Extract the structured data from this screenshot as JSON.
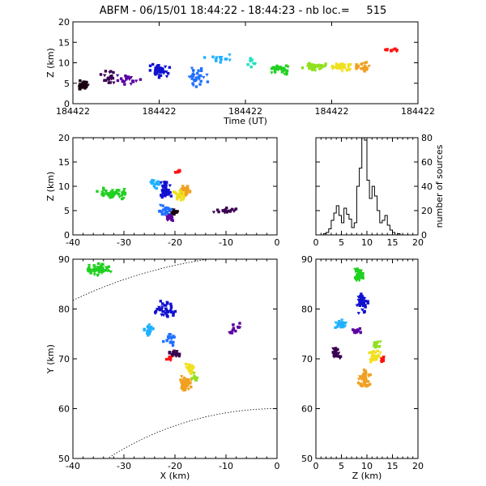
{
  "title": "ABFM - 06/15/01 18:44:22 - 18:44:23 - nb loc.=     515",
  "chart_data": [
    {
      "panel": "time-height",
      "type": "scatter",
      "xlabel": "Time (UT)",
      "ylabel": "Z (km)",
      "xlim": [
        0,
        1
      ],
      "ylim": [
        0,
        20
      ],
      "xticklabels": [
        "184422",
        "184422",
        "184422",
        "184422",
        "184422"
      ],
      "yticks": [
        0,
        5,
        10,
        15,
        20
      ],
      "clusters": [
        {
          "x": 0.03,
          "y": 4.5,
          "n": 40,
          "dx": 0.03,
          "dy": 1.5,
          "color": "#1a0010"
        },
        {
          "x": 0.1,
          "y": 6.5,
          "n": 20,
          "dx": 0.03,
          "dy": 2.0,
          "color": "#3a0050"
        },
        {
          "x": 0.16,
          "y": 6.0,
          "n": 20,
          "dx": 0.04,
          "dy": 2.0,
          "color": "#5a00a0"
        },
        {
          "x": 0.25,
          "y": 8.0,
          "n": 40,
          "dx": 0.04,
          "dy": 2.0,
          "color": "#1010d0"
        },
        {
          "x": 0.36,
          "y": 7.0,
          "n": 30,
          "dx": 0.04,
          "dy": 3.0,
          "color": "#2070ff"
        },
        {
          "x": 0.42,
          "y": 11.0,
          "n": 15,
          "dx": 0.05,
          "dy": 1.5,
          "color": "#20b0ff"
        },
        {
          "x": 0.52,
          "y": 10.0,
          "n": 10,
          "dx": 0.04,
          "dy": 2.0,
          "color": "#20e0c0"
        },
        {
          "x": 0.6,
          "y": 8.5,
          "n": 35,
          "dx": 0.04,
          "dy": 1.5,
          "color": "#20d020"
        },
        {
          "x": 0.7,
          "y": 9.0,
          "n": 40,
          "dx": 0.04,
          "dy": 1.5,
          "color": "#90e020"
        },
        {
          "x": 0.78,
          "y": 9.0,
          "n": 40,
          "dx": 0.04,
          "dy": 1.5,
          "color": "#f0e020"
        },
        {
          "x": 0.84,
          "y": 9.0,
          "n": 30,
          "dx": 0.03,
          "dy": 1.5,
          "color": "#f0a020"
        },
        {
          "x": 0.93,
          "y": 13.0,
          "n": 12,
          "dx": 0.03,
          "dy": 0.6,
          "color": "#ff1010"
        }
      ]
    },
    {
      "panel": "x-z",
      "type": "scatter",
      "xlabel": "",
      "ylabel": "Z (km)",
      "xlim": [
        -40,
        0
      ],
      "ylim": [
        0,
        20
      ],
      "xticks": [
        -40,
        -30,
        -20,
        -10,
        0
      ],
      "yticks": [
        0,
        5,
        10,
        15,
        20
      ],
      "clusters": [
        {
          "x": -32,
          "y": 8.5,
          "n": 55,
          "dx": 4,
          "dy": 1.3,
          "color": "#20d020"
        },
        {
          "x": -24,
          "y": 10.5,
          "n": 20,
          "dx": 1.5,
          "dy": 1.5,
          "color": "#20b0ff"
        },
        {
          "x": -22,
          "y": 9.0,
          "n": 45,
          "dx": 1.5,
          "dy": 2.5,
          "color": "#1010d0"
        },
        {
          "x": -22,
          "y": 5.0,
          "n": 25,
          "dx": 2.0,
          "dy": 1.5,
          "color": "#2070ff"
        },
        {
          "x": -21,
          "y": 3.5,
          "n": 20,
          "dx": 1.0,
          "dy": 1.0,
          "color": "#5a00a0"
        },
        {
          "x": -18,
          "y": 9.0,
          "n": 45,
          "dx": 1.5,
          "dy": 1.5,
          "color": "#f0a020"
        },
        {
          "x": -19,
          "y": 8.0,
          "n": 25,
          "dx": 1.5,
          "dy": 1.5,
          "color": "#f0e020"
        },
        {
          "x": -19.5,
          "y": 13.0,
          "n": 10,
          "dx": 0.7,
          "dy": 0.4,
          "color": "#ff1010"
        },
        {
          "x": -10,
          "y": 5.0,
          "n": 20,
          "dx": 3,
          "dy": 0.8,
          "color": "#3a0050"
        },
        {
          "x": -20,
          "y": 4.5,
          "n": 15,
          "dx": 1.5,
          "dy": 0.8,
          "color": "#1a0010"
        }
      ]
    },
    {
      "panel": "histogram",
      "type": "bar",
      "xlabel": "",
      "ylabel": "number of sources",
      "xlim": [
        0,
        20
      ],
      "ylim": [
        0,
        80
      ],
      "xticks": [
        0,
        5,
        10,
        15,
        20
      ],
      "yticks": [
        0,
        20,
        40,
        60,
        80
      ],
      "bin_width": 0.5,
      "bin_start": 0,
      "values": [
        0,
        0,
        0,
        1,
        2,
        5,
        12,
        18,
        24,
        16,
        10,
        22,
        17,
        13,
        6,
        10,
        40,
        55,
        82,
        78,
        45,
        30,
        40,
        32,
        20,
        10,
        12,
        16,
        8,
        4,
        2,
        0,
        1,
        0,
        0,
        0,
        0,
        0,
        0,
        0
      ]
    },
    {
      "panel": "x-y",
      "type": "scatter",
      "xlabel": "X (km)",
      "ylabel": "Y (km)",
      "xlim": [
        -40,
        0
      ],
      "ylim": [
        50,
        90
      ],
      "xticks": [
        -40,
        -30,
        -20,
        -10,
        0
      ],
      "yticks": [
        50,
        60,
        70,
        80,
        90
      ],
      "clusters": [
        {
          "x": -35,
          "y": 88,
          "n": 55,
          "dx": 3,
          "dy": 1.5,
          "color": "#20d020"
        },
        {
          "x": -22,
          "y": 80,
          "n": 45,
          "dx": 2.5,
          "dy": 2.5,
          "color": "#1010d0"
        },
        {
          "x": -25,
          "y": 76,
          "n": 25,
          "dx": 1.5,
          "dy": 1.5,
          "color": "#20b0ff"
        },
        {
          "x": -21,
          "y": 74,
          "n": 20,
          "dx": 1.5,
          "dy": 2.0,
          "color": "#2070ff"
        },
        {
          "x": -20,
          "y": 71,
          "n": 25,
          "dx": 1.5,
          "dy": 1.0,
          "color": "#3a0050"
        },
        {
          "x": -21,
          "y": 70,
          "n": 10,
          "dx": 1.0,
          "dy": 0.7,
          "color": "#ff1010"
        },
        {
          "x": -18,
          "y": 65,
          "n": 60,
          "dx": 1.5,
          "dy": 2.0,
          "color": "#f0a020"
        },
        {
          "x": -17,
          "y": 68,
          "n": 25,
          "dx": 1.0,
          "dy": 1.5,
          "color": "#f0e020"
        },
        {
          "x": -8,
          "y": 76,
          "n": 15,
          "dx": 2,
          "dy": 1.5,
          "color": "#5a00a0"
        },
        {
          "x": -16,
          "y": 66,
          "n": 10,
          "dx": 1,
          "dy": 1.5,
          "color": "#90e020"
        }
      ],
      "range_rings": true
    },
    {
      "panel": "z-y",
      "type": "scatter",
      "xlabel": "Z (km)",
      "ylabel": "",
      "xlim": [
        0,
        20
      ],
      "ylim": [
        50,
        90
      ],
      "xticks": [
        0,
        5,
        10,
        15,
        20
      ],
      "yticks": [
        50,
        60,
        70,
        80,
        90
      ],
      "clusters": [
        {
          "x": 8.5,
          "y": 87,
          "n": 45,
          "dx": 1.2,
          "dy": 2,
          "color": "#20d020"
        },
        {
          "x": 9.0,
          "y": 81,
          "n": 35,
          "dx": 1.5,
          "dy": 2.5,
          "color": "#1010d0"
        },
        {
          "x": 5.0,
          "y": 77,
          "n": 25,
          "dx": 1.5,
          "dy": 1.0,
          "color": "#20b0ff"
        },
        {
          "x": 4.0,
          "y": 71,
          "n": 30,
          "dx": 1.5,
          "dy": 1.5,
          "color": "#3a0050"
        },
        {
          "x": 9.5,
          "y": 66,
          "n": 55,
          "dx": 1.5,
          "dy": 2.5,
          "color": "#f0a020"
        },
        {
          "x": 11.5,
          "y": 71,
          "n": 25,
          "dx": 1.5,
          "dy": 2.0,
          "color": "#f0e020"
        },
        {
          "x": 13.0,
          "y": 70,
          "n": 10,
          "dx": 0.5,
          "dy": 1.0,
          "color": "#ff1010"
        },
        {
          "x": 8.0,
          "y": 76,
          "n": 15,
          "dx": 1.5,
          "dy": 1.5,
          "color": "#5a00a0"
        },
        {
          "x": 12.0,
          "y": 73,
          "n": 12,
          "dx": 1.5,
          "dy": 1.0,
          "color": "#90e020"
        }
      ]
    }
  ]
}
